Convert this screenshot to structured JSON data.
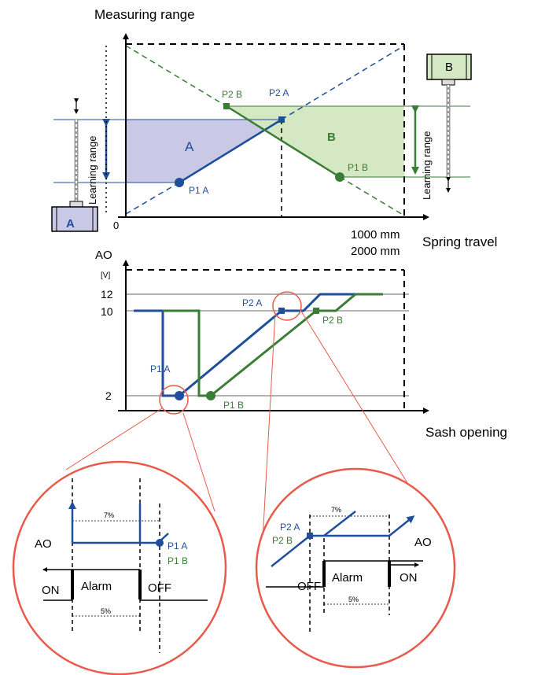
{
  "top_chart": {
    "y_axis_title": "Measuring range",
    "x_axis_title": "Spring travel",
    "origin_label": "0",
    "x_max_label_1": "1000 mm",
    "x_max_label_2": "2000 mm",
    "learning_range_left": "Learning range",
    "learning_range_right": "Learning range",
    "region_a_label": "A",
    "region_b_label": "B",
    "sensor_a_label": "A",
    "sensor_b_label": "B",
    "point_p1a": "P1 A",
    "point_p2a": "P2 A",
    "point_p1b": "P1 B",
    "point_p2b": "P2 B"
  },
  "bottom_chart": {
    "y_axis_title": "AO",
    "y_unit": "[V]",
    "y_tick_12": "12",
    "y_tick_10": "10",
    "y_tick_2": "2",
    "x_axis_title": "Sash opening",
    "point_p1a": "P1 A",
    "point_p2a": "P2 A",
    "point_p1b": "P1 B",
    "point_p2b": "P2 B"
  },
  "zoom_left": {
    "ao_label": "AO",
    "percent_7": "7%",
    "percent_5": "5%",
    "alarm_label": "Alarm",
    "on_label": "ON",
    "off_label": "OFF",
    "point_p1a": "P1  A",
    "point_p1b": "P1 B"
  },
  "zoom_right": {
    "ao_label": "AO",
    "percent_7": "7%",
    "percent_5": "5%",
    "alarm_label": "Alarm",
    "on_label": "ON",
    "off_label": "OFF",
    "point_p2a": "P2 A",
    "point_p2b": "P2 B"
  },
  "colors": {
    "blue": "#1f4e9c",
    "green": "#3a7d34",
    "red": "#e85a4a",
    "region_a_fill": "#c9c9e6",
    "region_b_fill": "#d5e8c4"
  }
}
